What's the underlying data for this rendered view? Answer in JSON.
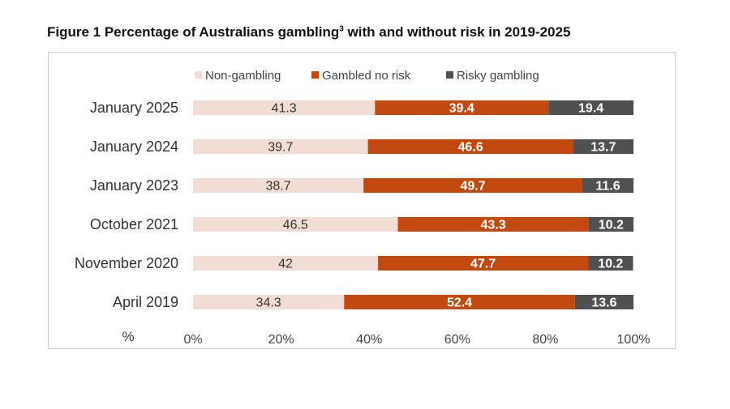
{
  "title": {
    "text": "Figure 1 Percentage of Australians gambling",
    "superscript": "3",
    "suffix": " with and without risk in 2019-2025"
  },
  "chart_data": {
    "type": "bar",
    "orientation": "horizontal",
    "stacked": "100%",
    "categories": [
      "January 2025",
      "January 2024",
      "January 2023",
      "October 2021",
      "November 2020",
      "April 2019"
    ],
    "series": [
      {
        "name": "Non-gambling",
        "color": "#f2ddd4",
        "label_color": "#333333",
        "values": [
          41.3,
          39.7,
          38.7,
          46.5,
          42,
          34.3
        ]
      },
      {
        "name": "Gambled no risk",
        "color": "#c2490f",
        "label_color": "#ffffff",
        "values": [
          39.4,
          46.6,
          49.7,
          43.3,
          47.7,
          52.4
        ]
      },
      {
        "name": "Risky gambling",
        "color": "#505050",
        "label_color": "#ffffff",
        "values": [
          19.4,
          13.7,
          11.6,
          10.2,
          10.2,
          13.6
        ]
      }
    ],
    "data_labels": [
      [
        "41.3",
        "39.7",
        "38.7",
        "46.5",
        "42",
        "34.3"
      ],
      [
        "39.4",
        "46.6",
        "49.7",
        "43.3",
        "47.7",
        "52.4"
      ],
      [
        "19.4",
        "13.7",
        "11.6",
        "10.2",
        "10.2",
        "13.6"
      ]
    ],
    "xlabel": "%",
    "ylabel": "",
    "xlim": [
      0,
      100
    ],
    "x_ticks": [
      0,
      20,
      40,
      60,
      80,
      100
    ],
    "x_tick_labels": [
      "0%",
      "20%",
      "40%",
      "60%",
      "80%",
      "100%"
    ],
    "grid": false,
    "legend_position": "top"
  }
}
